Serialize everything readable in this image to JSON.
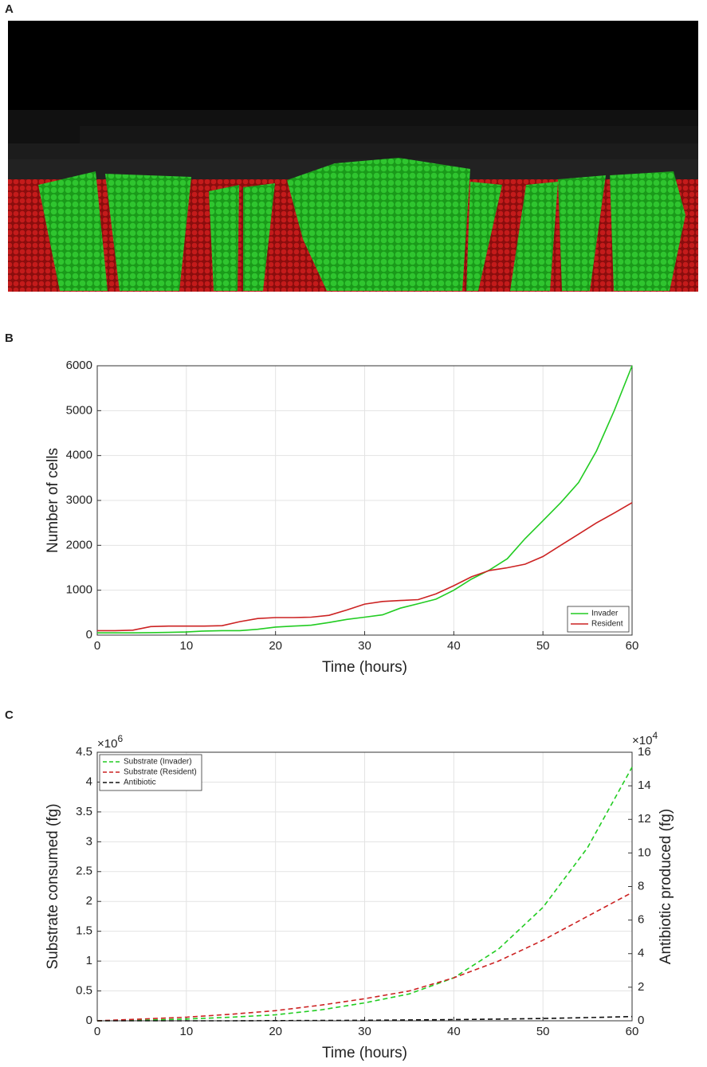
{
  "image_panel": {
    "label": "A"
  },
  "chart_data": [
    {
      "type": "line",
      "panel_label": "B",
      "xlabel": "Time (hours)",
      "ylabel": "Number of cells",
      "x": [
        0,
        2,
        4,
        6,
        8,
        10,
        12,
        14,
        16,
        18,
        20,
        22,
        24,
        26,
        28,
        30,
        32,
        34,
        36,
        38,
        40,
        42,
        44,
        46,
        48,
        50,
        52,
        54,
        56,
        58,
        60
      ],
      "series": [
        {
          "name": "Invader",
          "color": "#22cc22",
          "values": [
            50,
            50,
            50,
            55,
            60,
            70,
            90,
            100,
            100,
            130,
            180,
            200,
            220,
            280,
            350,
            400,
            450,
            600,
            700,
            800,
            1000,
            1250,
            1450,
            1700,
            2150,
            2550,
            2950,
            3400,
            4100,
            5000,
            6000
          ]
        },
        {
          "name": "Resident",
          "color": "#cc2222",
          "values": [
            100,
            100,
            110,
            190,
            200,
            200,
            200,
            210,
            300,
            370,
            390,
            390,
            400,
            440,
            560,
            690,
            750,
            770,
            790,
            920,
            1100,
            1300,
            1440,
            1500,
            1580,
            1750,
            2000,
            2250,
            2500,
            2720,
            2950
          ]
        }
      ],
      "xlim": [
        0,
        60
      ],
      "xticks": [
        0,
        10,
        20,
        30,
        40,
        50,
        60
      ],
      "ylim": [
        0,
        6000
      ],
      "yticks": [
        0,
        1000,
        2000,
        3000,
        4000,
        5000,
        6000
      ],
      "grid": true,
      "legend": "lower right"
    },
    {
      "type": "line",
      "panel_label": "C",
      "xlabel": "Time (hours)",
      "ylabel": "Substrate consumed (fg)",
      "y2label": "Antibiotic produced (fg)",
      "y_scale_label": {
        "base": "×10",
        "exponent": "6"
      },
      "y2_scale_label": {
        "base": "×10",
        "exponent": "4"
      },
      "x": [
        0,
        5,
        10,
        15,
        20,
        25,
        30,
        35,
        40,
        45,
        50,
        55,
        60
      ],
      "series": [
        {
          "name": "Substrate (Invader)",
          "color": "#22cc22",
          "dashed": true,
          "values": [
            0,
            0.01,
            0.03,
            0.06,
            0.1,
            0.18,
            0.3,
            0.45,
            0.72,
            1.2,
            1.9,
            2.9,
            4.25
          ]
        },
        {
          "name": "Substrate (Resident)",
          "color": "#cc2222",
          "dashed": true,
          "values": [
            0,
            0.03,
            0.06,
            0.11,
            0.17,
            0.26,
            0.37,
            0.5,
            0.72,
            1.0,
            1.35,
            1.75,
            2.15
          ]
        },
        {
          "name": "Antibiotic",
          "color": "#111111",
          "dashed": true,
          "axis": "y2",
          "values": [
            0,
            0,
            0,
            0,
            0.01,
            0.02,
            0.03,
            0.05,
            0.07,
            0.1,
            0.14,
            0.19,
            0.25
          ]
        }
      ],
      "xlim": [
        0,
        60
      ],
      "xticks": [
        0,
        10,
        20,
        30,
        40,
        50,
        60
      ],
      "ylim": [
        0,
        4.5
      ],
      "yticks": [
        0,
        0.5,
        1,
        1.5,
        2,
        2.5,
        3,
        3.5,
        4,
        4.5
      ],
      "y2lim": [
        0,
        16
      ],
      "y2ticks": [
        0,
        2,
        4,
        6,
        8,
        10,
        12,
        14,
        16
      ],
      "grid": true,
      "legend": "upper left"
    }
  ]
}
